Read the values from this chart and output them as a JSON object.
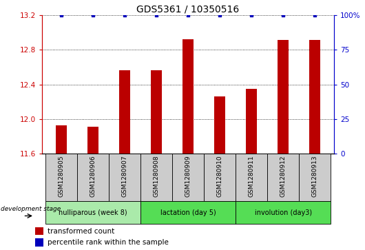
{
  "title": "GDS5361 / 10350516",
  "samples": [
    "GSM1280905",
    "GSM1280906",
    "GSM1280907",
    "GSM1280908",
    "GSM1280909",
    "GSM1280910",
    "GSM1280911",
    "GSM1280912",
    "GSM1280913"
  ],
  "bar_values": [
    11.93,
    11.91,
    12.56,
    12.56,
    12.92,
    12.26,
    12.35,
    12.91,
    12.91
  ],
  "ymin": 11.6,
  "ymax": 13.2,
  "yticks_left": [
    11.6,
    12.0,
    12.4,
    12.8,
    13.2
  ],
  "yticks_right": [
    0,
    25,
    50,
    75,
    100
  ],
  "bar_color": "#BB0000",
  "dot_color": "#0000BB",
  "groups": [
    {
      "label": "nulliparous (week 8)",
      "start": 0,
      "end": 3,
      "color": "#AAEAAA"
    },
    {
      "label": "lactation (day 5)",
      "start": 3,
      "end": 6,
      "color": "#55DD55"
    },
    {
      "label": "involution (day3)",
      "start": 6,
      "end": 9,
      "color": "#55DD55"
    }
  ],
  "legend_bar_label": "transformed count",
  "legend_dot_label": "percentile rank within the sample",
  "dev_stage_label": "development stage",
  "tick_color_left": "#CC0000",
  "tick_color_right": "#0000CC",
  "label_bg": "#CCCCCC",
  "bar_width": 0.35
}
